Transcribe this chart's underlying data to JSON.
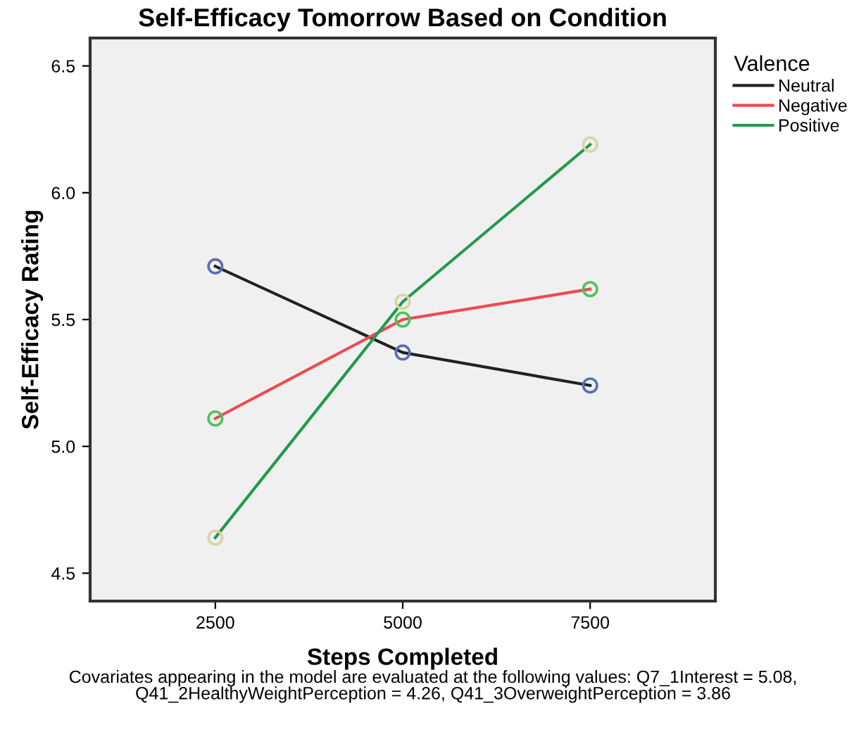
{
  "chart_data": {
    "type": "line",
    "title": "Self-Efficacy Tomorrow Based on Condition",
    "xlabel": "Steps Completed",
    "ylabel": "Self-Efficacy Rating",
    "legend_title": "Valence",
    "x": [
      2500,
      5000,
      7500
    ],
    "series": [
      {
        "name": "Neutral",
        "color": "#222222",
        "colors": [
          "#5a6db5",
          "#5a6db5",
          "#5a6db5"
        ],
        "values": [
          5.71,
          5.37,
          5.24
        ]
      },
      {
        "name": "Negative",
        "color": "#f0494f",
        "colors": [
          "#4cc35a",
          "#4cc35a",
          "#4cc35a"
        ],
        "values": [
          5.11,
          5.5,
          5.62
        ]
      },
      {
        "name": "Positive",
        "color": "#1f9a4f",
        "colors": [
          "#d8d4a4",
          "#d8d4a4",
          "#d8d4a4"
        ],
        "values": [
          4.64,
          5.57,
          6.19
        ]
      }
    ],
    "xlim": [
      830,
      9170
    ],
    "xticks": [
      2500,
      5000,
      7500
    ],
    "ylim": [
      4.39,
      6.61
    ],
    "yticks": [
      4.5,
      {
        "value": 5,
        "label": "5.0"
      },
      5.5,
      {
        "value": 6,
        "label": "6.0"
      },
      6.5
    ],
    "marker": "circle",
    "line_style": "solid",
    "grid": false,
    "legend": "top right",
    "annotations": [
      "Covariates appearing in the model are evaluated at the following values: Q7_1Interest = 5.08,\nQ41_2HealthyWeightPerception = 4.26, Q41_3OverweightPerception = 3.86"
    ]
  }
}
